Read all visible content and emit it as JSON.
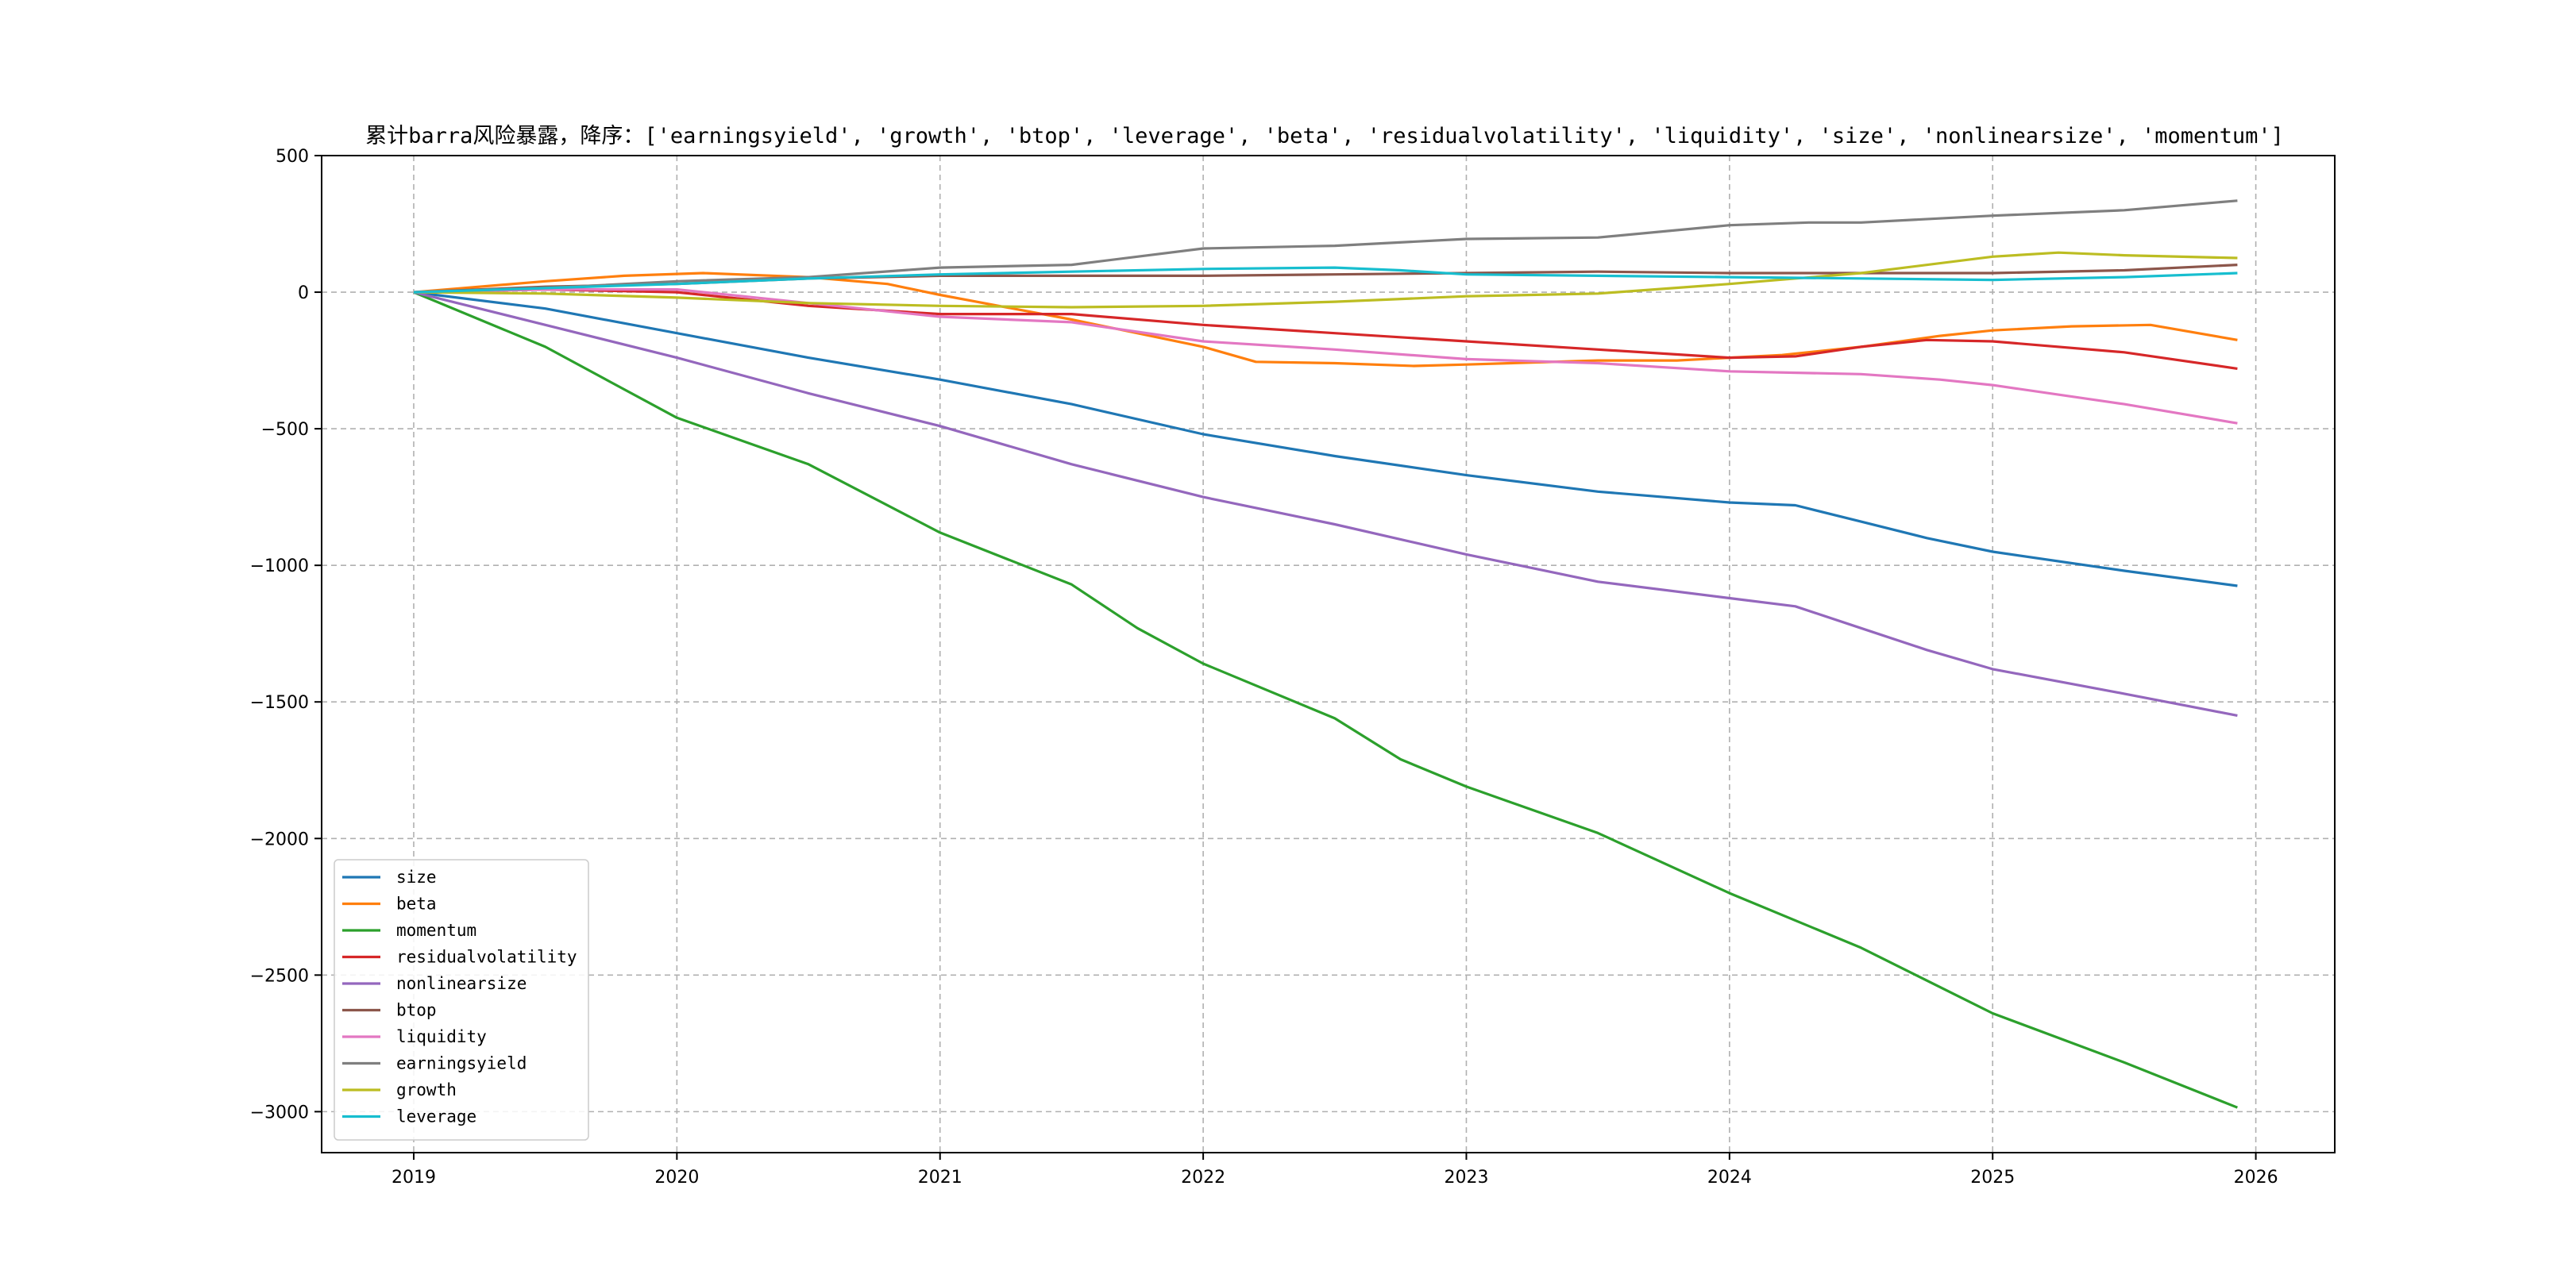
{
  "chart_data": {
    "type": "line",
    "title": "累计barra风险暴露，降序：['earningsyield', 'growth', 'btop', 'leverage', 'beta', 'residualvolatility', 'liquidity', 'size', 'nonlinearsize', 'momentum']",
    "xlabel": "",
    "ylabel": "",
    "xlim": [
      2018.65,
      2026.3
    ],
    "ylim": [
      -3150,
      500
    ],
    "x_ticks": [
      2019,
      2020,
      2021,
      2022,
      2023,
      2024,
      2025,
      2026
    ],
    "y_ticks": [
      500,
      0,
      -500,
      -1000,
      -1500,
      -2000,
      -2500,
      -3000
    ],
    "grid": true,
    "legend_position": "lower-left",
    "series": [
      {
        "name": "size",
        "color": "#1f77b4",
        "points": [
          [
            2019,
            0
          ],
          [
            2019.5,
            -60
          ],
          [
            2020,
            -150
          ],
          [
            2020.5,
            -240
          ],
          [
            2021,
            -320
          ],
          [
            2021.5,
            -410
          ],
          [
            2022,
            -520
          ],
          [
            2022.5,
            -600
          ],
          [
            2023,
            -670
          ],
          [
            2023.5,
            -730
          ],
          [
            2024,
            -770
          ],
          [
            2024.25,
            -780
          ],
          [
            2024.5,
            -840
          ],
          [
            2024.75,
            -900
          ],
          [
            2025,
            -950
          ],
          [
            2025.5,
            -1020
          ],
          [
            2025.93,
            -1075
          ]
        ]
      },
      {
        "name": "beta",
        "color": "#ff7f0e",
        "points": [
          [
            2019,
            0
          ],
          [
            2019.5,
            40
          ],
          [
            2019.8,
            60
          ],
          [
            2020.1,
            70
          ],
          [
            2020.5,
            55
          ],
          [
            2020.8,
            30
          ],
          [
            2021,
            -10
          ],
          [
            2021.5,
            -100
          ],
          [
            2022,
            -200
          ],
          [
            2022.2,
            -255
          ],
          [
            2022.5,
            -260
          ],
          [
            2022.8,
            -270
          ],
          [
            2023,
            -265
          ],
          [
            2023.5,
            -250
          ],
          [
            2023.8,
            -250
          ],
          [
            2024,
            -240
          ],
          [
            2024.2,
            -230
          ],
          [
            2024.5,
            -200
          ],
          [
            2024.8,
            -160
          ],
          [
            2025,
            -140
          ],
          [
            2025.3,
            -125
          ],
          [
            2025.6,
            -120
          ],
          [
            2025.93,
            -175
          ]
        ]
      },
      {
        "name": "momentum",
        "color": "#2ca02c",
        "points": [
          [
            2019,
            0
          ],
          [
            2019.5,
            -200
          ],
          [
            2019.75,
            -330
          ],
          [
            2020,
            -460
          ],
          [
            2020.5,
            -630
          ],
          [
            2021,
            -880
          ],
          [
            2021.5,
            -1070
          ],
          [
            2021.75,
            -1230
          ],
          [
            2022,
            -1360
          ],
          [
            2022.5,
            -1560
          ],
          [
            2022.75,
            -1710
          ],
          [
            2023,
            -1810
          ],
          [
            2023.5,
            -1980
          ],
          [
            2024,
            -2200
          ],
          [
            2024.5,
            -2400
          ],
          [
            2025,
            -2640
          ],
          [
            2025.5,
            -2820
          ],
          [
            2025.93,
            -2985
          ]
        ]
      },
      {
        "name": "residualvolatility",
        "color": "#d62728",
        "points": [
          [
            2019,
            0
          ],
          [
            2019.5,
            10
          ],
          [
            2020,
            0
          ],
          [
            2020.5,
            -50
          ],
          [
            2021,
            -80
          ],
          [
            2021.5,
            -80
          ],
          [
            2022,
            -120
          ],
          [
            2022.5,
            -150
          ],
          [
            2023,
            -180
          ],
          [
            2023.5,
            -210
          ],
          [
            2024,
            -240
          ],
          [
            2024.25,
            -235
          ],
          [
            2024.5,
            -200
          ],
          [
            2024.75,
            -175
          ],
          [
            2025,
            -180
          ],
          [
            2025.5,
            -220
          ],
          [
            2025.93,
            -280
          ]
        ]
      },
      {
        "name": "nonlinearsize",
        "color": "#9467bd",
        "points": [
          [
            2019,
            0
          ],
          [
            2019.5,
            -120
          ],
          [
            2020,
            -240
          ],
          [
            2020.5,
            -370
          ],
          [
            2021,
            -490
          ],
          [
            2021.5,
            -630
          ],
          [
            2022,
            -750
          ],
          [
            2022.5,
            -850
          ],
          [
            2023,
            -960
          ],
          [
            2023.5,
            -1060
          ],
          [
            2024,
            -1120
          ],
          [
            2024.25,
            -1150
          ],
          [
            2024.5,
            -1230
          ],
          [
            2024.75,
            -1310
          ],
          [
            2025,
            -1380
          ],
          [
            2025.5,
            -1470
          ],
          [
            2025.93,
            -1550
          ]
        ]
      },
      {
        "name": "btop",
        "color": "#8c564b",
        "points": [
          [
            2019,
            0
          ],
          [
            2019.5,
            20
          ],
          [
            2020,
            30
          ],
          [
            2020.5,
            50
          ],
          [
            2021,
            60
          ],
          [
            2021.5,
            60
          ],
          [
            2022,
            60
          ],
          [
            2022.5,
            65
          ],
          [
            2023,
            70
          ],
          [
            2023.5,
            75
          ],
          [
            2024,
            70
          ],
          [
            2024.5,
            70
          ],
          [
            2025,
            70
          ],
          [
            2025.5,
            80
          ],
          [
            2025.93,
            100
          ]
        ]
      },
      {
        "name": "liquidity",
        "color": "#e377c2",
        "points": [
          [
            2019,
            0
          ],
          [
            2019.5,
            10
          ],
          [
            2020,
            10
          ],
          [
            2020.5,
            -40
          ],
          [
            2021,
            -90
          ],
          [
            2021.5,
            -110
          ],
          [
            2022,
            -180
          ],
          [
            2022.5,
            -210
          ],
          [
            2023,
            -245
          ],
          [
            2023.5,
            -260
          ],
          [
            2024,
            -290
          ],
          [
            2024.5,
            -300
          ],
          [
            2024.8,
            -320
          ],
          [
            2025,
            -340
          ],
          [
            2025.5,
            -410
          ],
          [
            2025.93,
            -480
          ]
        ]
      },
      {
        "name": "earningsyield",
        "color": "#7f7f7f",
        "points": [
          [
            2019,
            0
          ],
          [
            2019.5,
            15
          ],
          [
            2020,
            40
          ],
          [
            2020.5,
            55
          ],
          [
            2021,
            90
          ],
          [
            2021.5,
            100
          ],
          [
            2022,
            160
          ],
          [
            2022.5,
            170
          ],
          [
            2023,
            195
          ],
          [
            2023.5,
            200
          ],
          [
            2024,
            245
          ],
          [
            2024.3,
            255
          ],
          [
            2024.5,
            255
          ],
          [
            2025,
            280
          ],
          [
            2025.5,
            300
          ],
          [
            2025.93,
            335
          ]
        ]
      },
      {
        "name": "growth",
        "color": "#bcbd22",
        "points": [
          [
            2019,
            0
          ],
          [
            2019.5,
            -5
          ],
          [
            2020,
            -20
          ],
          [
            2020.5,
            -40
          ],
          [
            2021,
            -50
          ],
          [
            2021.5,
            -55
          ],
          [
            2022,
            -50
          ],
          [
            2022.5,
            -35
          ],
          [
            2023,
            -15
          ],
          [
            2023.5,
            -5
          ],
          [
            2024,
            30
          ],
          [
            2024.5,
            70
          ],
          [
            2025,
            130
          ],
          [
            2025.25,
            145
          ],
          [
            2025.5,
            135
          ],
          [
            2025.93,
            125
          ]
        ]
      },
      {
        "name": "leverage",
        "color": "#17becf",
        "points": [
          [
            2019,
            0
          ],
          [
            2019.5,
            15
          ],
          [
            2020,
            30
          ],
          [
            2020.5,
            50
          ],
          [
            2021,
            65
          ],
          [
            2021.5,
            75
          ],
          [
            2022,
            85
          ],
          [
            2022.5,
            90
          ],
          [
            2022.75,
            80
          ],
          [
            2023,
            65
          ],
          [
            2023.5,
            60
          ],
          [
            2024,
            55
          ],
          [
            2024.5,
            50
          ],
          [
            2025,
            45
          ],
          [
            2025.5,
            55
          ],
          [
            2025.93,
            70
          ]
        ]
      }
    ]
  }
}
